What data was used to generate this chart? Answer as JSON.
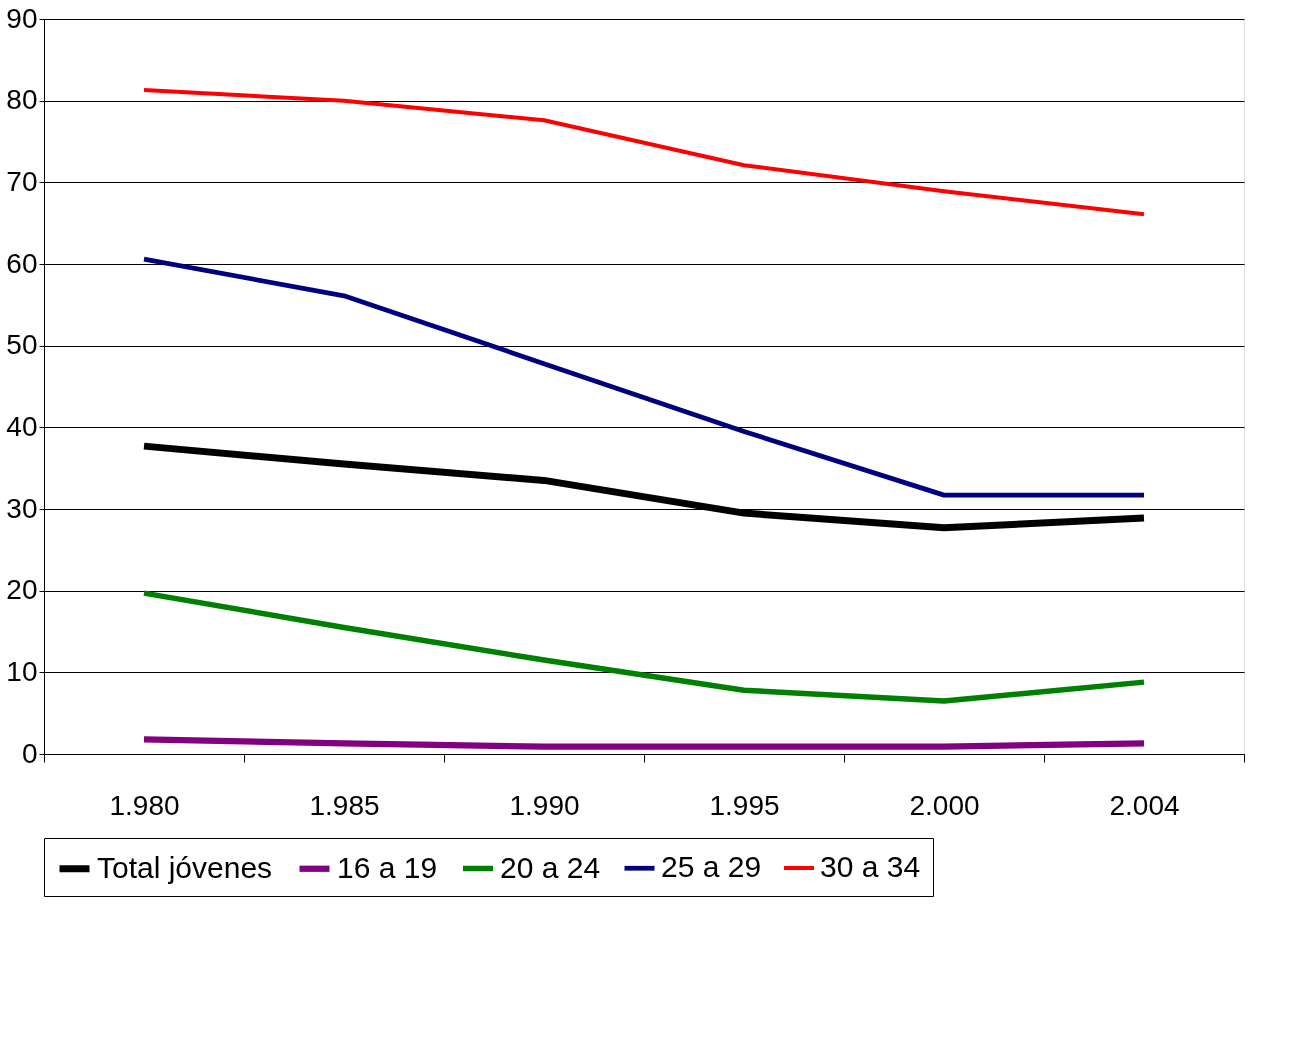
{
  "chart_data": {
    "type": "line",
    "categories": [
      "1.980",
      "1.985",
      "1.990",
      "1.995",
      "2.000",
      "2.004"
    ],
    "series": [
      {
        "name": "Total jóvenes",
        "color": "#000000",
        "values": [
          37.7,
          35.5,
          33.5,
          29.5,
          27.7,
          28.9
        ]
      },
      {
        "name": "16 a 19",
        "color": "#800080",
        "values": [
          1.8,
          1.3,
          0.9,
          0.9,
          0.9,
          1.3
        ]
      },
      {
        "name": "20 a 24",
        "color": "#008000",
        "values": [
          19.7,
          15.5,
          11.5,
          7.8,
          6.5,
          8.8
        ]
      },
      {
        "name": "25 a 29",
        "color": "#000080",
        "values": [
          60.6,
          56.1,
          47.8,
          39.5,
          31.7,
          31.7
        ]
      },
      {
        "name": "30 a 34",
        "color": "#ff0000",
        "values": [
          81.3,
          80.0,
          77.6,
          72.1,
          68.9,
          66.1
        ]
      }
    ],
    "ylim": [
      0,
      90
    ],
    "yticks": [
      0,
      10,
      20,
      30,
      40,
      50,
      60,
      70,
      80,
      90
    ],
    "grid": "y",
    "legend": "bottom",
    "marker": "none",
    "line_style": "solid"
  }
}
